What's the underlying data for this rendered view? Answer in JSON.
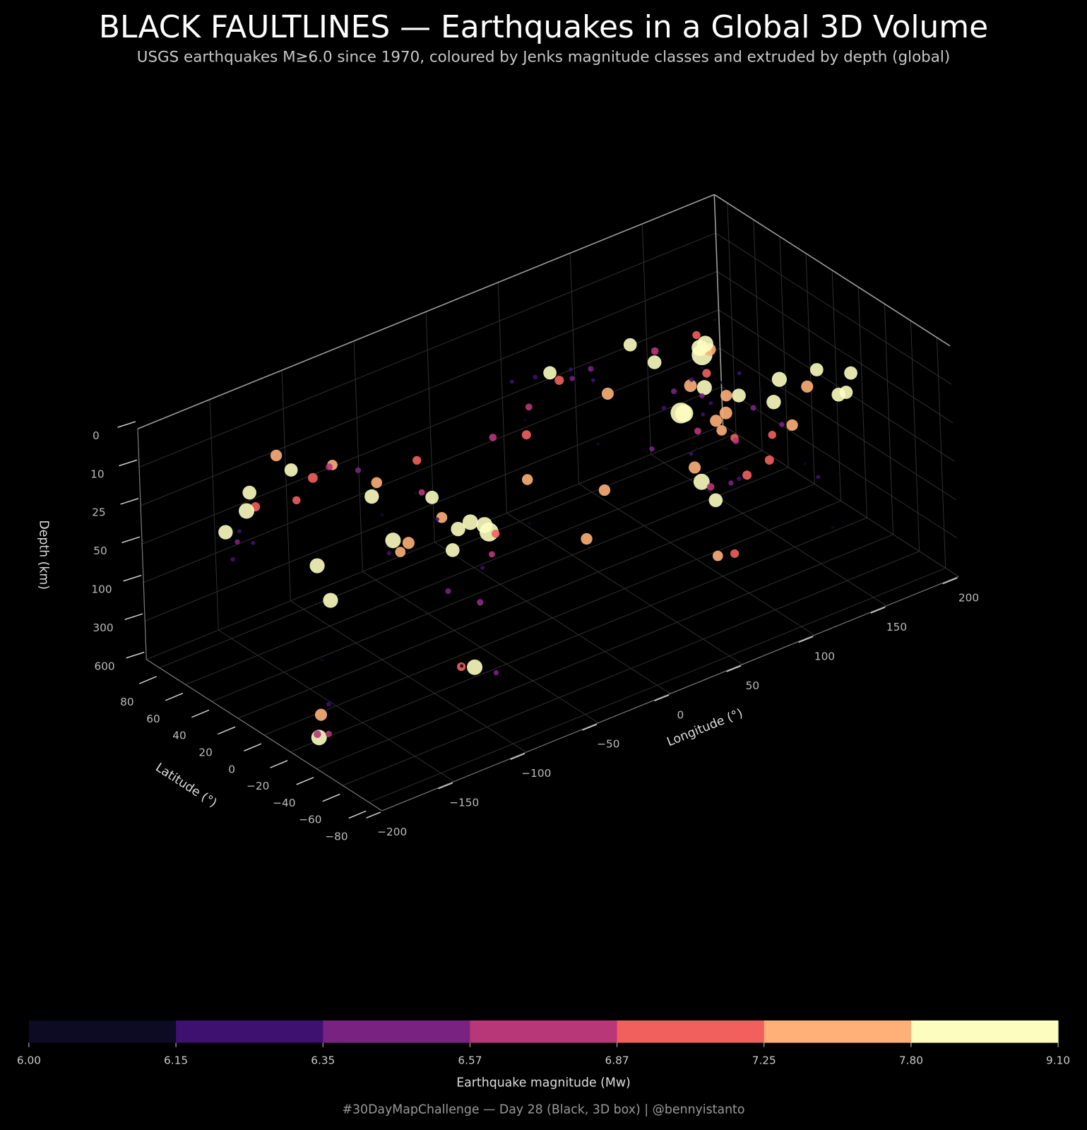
{
  "chart_data": {
    "type": "scatter3d",
    "title": "BLACK FAULTLINES — Earthquakes in a Global 3D Volume",
    "subtitle": "USGS earthquakes M≥6.0 since 1970, coloured by Jenks magnitude classes and extruded by depth (global)",
    "footer": "#30DayMapChallenge — Day 28 (Black, 3D box) | @bennyistanto",
    "xlabel": "Longitude (°)",
    "ylabel": "Latitude (°)",
    "zlabel": "Depth (km)",
    "xlim": [
      -200,
      200
    ],
    "ylim": [
      -90,
      90
    ],
    "zlim": [
      0,
      600
    ],
    "xticks": [
      {
        "value": -200,
        "label": "−200"
      },
      {
        "value": -150,
        "label": "−150"
      },
      {
        "value": -100,
        "label": "−100"
      },
      {
        "value": -50,
        "label": "−50"
      },
      0,
      50,
      100,
      150,
      200
    ],
    "yticks": [
      80,
      60,
      40,
      20,
      0,
      {
        "value": -20,
        "label": "−20"
      },
      {
        "value": -40,
        "label": "−40"
      },
      {
        "value": -60,
        "label": "−60"
      },
      {
        "value": -80,
        "label": "−80"
      }
    ],
    "zticks": [
      0,
      10,
      25,
      50,
      100,
      300,
      600
    ],
    "points": {
      "lon": [
        142.4,
        95.9,
        97.1,
        -72.7,
        -70.8,
        -71.7,
        153.3,
        -178.3,
        -93.9,
        -66.5,
        100.4,
        135.8,
        121.0,
        103.3,
        84.7,
        73.6,
        70.7,
        57.0,
        44.3,
        37.0,
        26.3,
        -77.0,
        -75.6,
        -79.0,
        -86.0,
        -101.0,
        -116.4,
        -125.0,
        -147.0,
        -153.4,
        -158.5,
        -176.5,
        178.0,
        160.0,
        152.0,
        147.5,
        144.0,
        143.0,
        141.5,
        139.0,
        130.0,
        126.6,
        125.5,
        126.5,
        122.0,
        115.0,
        108.0,
        120.0,
        147.0,
        152.5,
        155.0,
        160.0,
        167.0,
        169.0,
        175.0,
        -177.0,
        -173.0,
        -179.0,
        173.0,
        166.5,
        -27.5,
        -14.0,
        -30.0,
        -60.0,
        -72.5,
        -80.0,
        -90.5,
        -104.0,
        -109.0,
        -129.0,
        -134.0,
        -168.0,
        -165.0,
        -171.5,
        139.0,
        141.0,
        144.5,
        122.5,
        125.0,
        130.0,
        96.0,
        94.5,
        67.0,
        60.0,
        51.0,
        48.0,
        28.0,
        22.0,
        15.0,
        20.0,
        -70.0,
        -68.5,
        -71.0,
        -73.0,
        -76.0,
        -63.5,
        -71.0,
        -72.0,
        -75.0,
        -78.0,
        -83.0,
        -96.0,
        -98.5,
        -119.0,
        -152.0,
        -155.0,
        -176.0,
        -178.5,
        -177.0,
        -175.5,
        179.0,
        169.0,
        166.0,
        156.0,
        150.0,
        145.0,
        140.0,
        128.0,
        123.0,
        120.0,
        101.0,
        98.0,
        94.0,
        92.0,
        118.0,
        112.0,
        145.5,
        147.0,
        142.0,
        -63.0
      ],
      "lat": [
        38.3,
        3.3,
        2.1,
        -36.1,
        -19.6,
        -31.6,
        54.9,
        -18.0,
        15.0,
        -13.8,
        -0.7,
        34.6,
        23.8,
        31.0,
        28.2,
        34.5,
        36.5,
        28.0,
        38.5,
        37.2,
        45.7,
        -12.0,
        -15.3,
        0.3,
        12.0,
        18.0,
        34.5,
        40.3,
        60.9,
        57.8,
        54.8,
        51.2,
        51.5,
        52.5,
        46.5,
        43.3,
        41.8,
        36.0,
        34.5,
        28.0,
        -7.5,
        2.5,
        10.0,
        7.0,
        -8.0,
        -10.0,
        -7.5,
        -7.0,
        -6.0,
        -4.8,
        -7.0,
        -10.0,
        -14.8,
        -20.5,
        -30.0,
        -29.5,
        -15.5,
        -21.0,
        -42.5,
        -45.7,
        -60.5,
        -1.0,
        7.0,
        15.0,
        18.5,
        7.0,
        13.5,
        18.8,
        23.0,
        52.5,
        58.0,
        52.0,
        53.5,
        52.0,
        35.5,
        38.0,
        41.0,
        24.5,
        13.0,
        31.0,
        22.0,
        25.5,
        38.0,
        28.0,
        36.0,
        33.5,
        38.5,
        37.5,
        42.0,
        39.0,
        -24.0,
        -22.5,
        -28.0,
        -38.0,
        -45.0,
        -27.0,
        -8.5,
        -10.0,
        -5.0,
        -2.0,
        8.0,
        16.0,
        17.5,
        34.0,
        58.0,
        19.4,
        -23.0,
        -17.0,
        -25.0,
        -19.0,
        -17.0,
        -18.5,
        -12.0,
        -6.5,
        -5.5,
        -4.0,
        -3.0,
        -3.5,
        0.5,
        -1.5,
        -3.5,
        -1.0,
        6.0,
        12.0,
        -8.5,
        -9.5,
        18.0,
        15.0,
        27.0,
        -57.0
      ],
      "depth": [
        29,
        30,
        30,
        23,
        25,
        22,
        598,
        600,
        47,
        590,
        80,
        17,
        33,
        19,
        8,
        26,
        210,
        10,
        15,
        10,
        90,
        45,
        30,
        20,
        50,
        15,
        10,
        15,
        30,
        20,
        25,
        30,
        110,
        40,
        30,
        60,
        27,
        40,
        450,
        500,
        120,
        30,
        50,
        60,
        50,
        30,
        560,
        600,
        100,
        40,
        25,
        60,
        30,
        20,
        30,
        30,
        20,
        400,
        15,
        20,
        30,
        10,
        10,
        45,
        13,
        20,
        60,
        20,
        10,
        15,
        10,
        40,
        35,
        50,
        80,
        60,
        40,
        30,
        40,
        150,
        10,
        80,
        20,
        50,
        15,
        10,
        10,
        20,
        10,
        25,
        100,
        110,
        50,
        35,
        20,
        560,
        600,
        580,
        110,
        30,
        20,
        60,
        30,
        10,
        50,
        10,
        550,
        580,
        300,
        100,
        600,
        200,
        150,
        60,
        70,
        30,
        40,
        150,
        100,
        20,
        40,
        60,
        20,
        30,
        120,
        80,
        100,
        30,
        10,
        15
      ],
      "mag": [
        9.1,
        9.1,
        8.6,
        8.8,
        8.2,
        8.3,
        8.3,
        8.2,
        8.2,
        8.2,
        7.6,
        6.9,
        7.7,
        7.9,
        7.8,
        7.6,
        7.5,
        6.5,
        7.1,
        7.8,
        7.4,
        7.9,
        8.0,
        7.8,
        7.6,
        7.4,
        7.3,
        7.2,
        7.1,
        7.9,
        8.2,
        8.0,
        7.9,
        7.7,
        8.3,
        8.1,
        8.3,
        7.0,
        6.8,
        7.9,
        7.1,
        7.5,
        7.6,
        7.3,
        6.9,
        7.7,
        7.3,
        7.0,
        7.1,
        8.0,
        8.1,
        7.5,
        7.6,
        7.8,
        7.9,
        8.1,
        8.1,
        7.6,
        7.8,
        7.8,
        7.5,
        7.1,
        6.8,
        7.4,
        7.0,
        6.6,
        7.3,
        8.0,
        6.5,
        7.8,
        7.5,
        6.4,
        6.2,
        6.3,
        6.2,
        6.4,
        6.1,
        6.3,
        6.2,
        6.0,
        6.8,
        6.4,
        6.2,
        6.1,
        6.4,
        6.2,
        6.3,
        6.7,
        6.2,
        6.0,
        6.6,
        6.4,
        6.2,
        6.6,
        6.9,
        6.4,
        7.0,
        6.1,
        6.5,
        6.2,
        6.0,
        6.3,
        6.1,
        6.7,
        6.2,
        6.9,
        6.6,
        6.8,
        6.3,
        6.0,
        6.1,
        6.2,
        6.0,
        6.4,
        6.9,
        6.0,
        6.5,
        6.3,
        6.1,
        6.0,
        6.7,
        6.2,
        6.5,
        6.3,
        6.4,
        6.1,
        6.6,
        6.2,
        6.1,
        6.0
      ]
    },
    "colorbar": {
      "label": "Earthquake magnitude (Mw)",
      "ticks": [
        {
          "value": 6.0,
          "label": "6.00"
        },
        {
          "value": 6.15,
          "label": "6.15"
        },
        {
          "value": 6.35,
          "label": "6.35"
        },
        {
          "value": 6.57,
          "label": "6.57"
        },
        {
          "value": 6.87,
          "label": "6.87"
        },
        {
          "value": 7.25,
          "label": "7.25"
        },
        {
          "value": 7.8,
          "label": "7.80"
        },
        {
          "value": 9.1,
          "label": "9.10"
        }
      ],
      "colors": [
        "#0d0a23",
        "#3e1070",
        "#792282",
        "#b73779",
        "#f1605d",
        "#feb078",
        "#fcfdbf"
      ]
    }
  }
}
